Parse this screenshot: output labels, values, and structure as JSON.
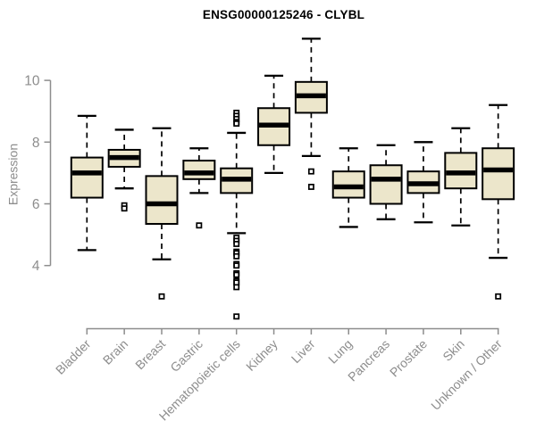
{
  "chart_data": {
    "type": "box",
    "title": "ENSG00000125246 - CLYBL",
    "ylabel": "Expression",
    "xlabel": "",
    "yticks": [
      4,
      6,
      8,
      10
    ],
    "ylim": [
      2.2,
      11.5
    ],
    "grid": false,
    "legend": "none",
    "x_label_rotation_deg": 45,
    "outlier_marker": "open-square",
    "categories": [
      "Bladder",
      "Brain",
      "Breast",
      "Gastric",
      "Hematopoietic cells",
      "Kidney",
      "Liver",
      "Lung",
      "Pancreas",
      "Prostate",
      "Skin",
      "Unknown / Other"
    ],
    "series": [
      {
        "name": "Bladder",
        "low": 4.5,
        "q1": 6.2,
        "median": 7.0,
        "q3": 7.5,
        "high": 8.85,
        "outliers": []
      },
      {
        "name": "Brain",
        "low": 6.5,
        "q1": 7.2,
        "median": 7.5,
        "q3": 7.75,
        "high": 8.4,
        "outliers": [
          5.95,
          5.85
        ]
      },
      {
        "name": "Breast",
        "low": 4.2,
        "q1": 5.35,
        "median": 6.0,
        "q3": 6.9,
        "high": 8.45,
        "outliers": [
          3.0
        ]
      },
      {
        "name": "Gastric",
        "low": 6.35,
        "q1": 6.8,
        "median": 7.0,
        "q3": 7.4,
        "high": 7.8,
        "outliers": [
          5.3
        ]
      },
      {
        "name": "Hematopoietic cells",
        "low": 5.05,
        "q1": 6.35,
        "median": 6.8,
        "q3": 7.15,
        "high": 8.3,
        "outliers": [
          8.95,
          8.85,
          8.75,
          8.65,
          8.6,
          4.9,
          4.8,
          4.7,
          4.45,
          4.4,
          4.3,
          4.05,
          4.0,
          3.75,
          3.7,
          3.5,
          3.45,
          3.3,
          2.35
        ]
      },
      {
        "name": "Kidney",
        "low": 7.0,
        "q1": 7.9,
        "median": 8.55,
        "q3": 9.1,
        "high": 10.15,
        "outliers": []
      },
      {
        "name": "Liver",
        "low": 7.55,
        "q1": 8.95,
        "median": 9.5,
        "q3": 9.95,
        "high": 11.35,
        "outliers": [
          7.05,
          6.55
        ]
      },
      {
        "name": "Lung",
        "low": 5.25,
        "q1": 6.2,
        "median": 6.55,
        "q3": 7.05,
        "high": 7.8,
        "outliers": []
      },
      {
        "name": "Pancreas",
        "low": 5.5,
        "q1": 6.0,
        "median": 6.8,
        "q3": 7.25,
        "high": 7.9,
        "outliers": []
      },
      {
        "name": "Prostate",
        "low": 5.4,
        "q1": 6.35,
        "median": 6.65,
        "q3": 7.05,
        "high": 8.0,
        "outliers": []
      },
      {
        "name": "Skin",
        "low": 5.3,
        "q1": 6.5,
        "median": 7.0,
        "q3": 7.65,
        "high": 8.45,
        "outliers": []
      },
      {
        "name": "Unknown / Other",
        "low": 4.25,
        "q1": 6.15,
        "median": 7.1,
        "q3": 7.8,
        "high": 9.2,
        "outliers": [
          3.0
        ]
      }
    ],
    "colors": {
      "box_fill": "#ece6cb",
      "box_border": "#000000",
      "median": "#000000",
      "whisker": "#000000",
      "outlier_fill": "#ffffff",
      "axis": "#8d8d8d",
      "title": "#000000",
      "background": "#ffffff"
    }
  }
}
